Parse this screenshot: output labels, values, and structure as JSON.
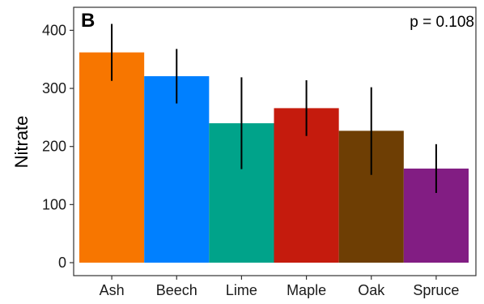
{
  "chart_data": {
    "type": "bar",
    "panel_label": "B",
    "annotation": "p = 0.108",
    "xlabel": "",
    "ylabel": "Nitrate",
    "ylim": [
      0,
      420
    ],
    "yticks": [
      0,
      100,
      200,
      300,
      400
    ],
    "categories": [
      "Ash",
      "Beech",
      "Lime",
      "Maple",
      "Oak",
      "Spruce"
    ],
    "values": [
      362,
      321,
      240,
      266,
      227,
      162
    ],
    "error_lower": [
      313,
      274,
      161,
      218,
      151,
      120
    ],
    "error_upper": [
      411,
      368,
      319,
      314,
      302,
      204
    ],
    "colors": [
      "#F77600",
      "#0080FF",
      "#00A38A",
      "#C51B0D",
      "#6E3E04",
      "#821D83"
    ],
    "grid": false,
    "legend": "none"
  }
}
